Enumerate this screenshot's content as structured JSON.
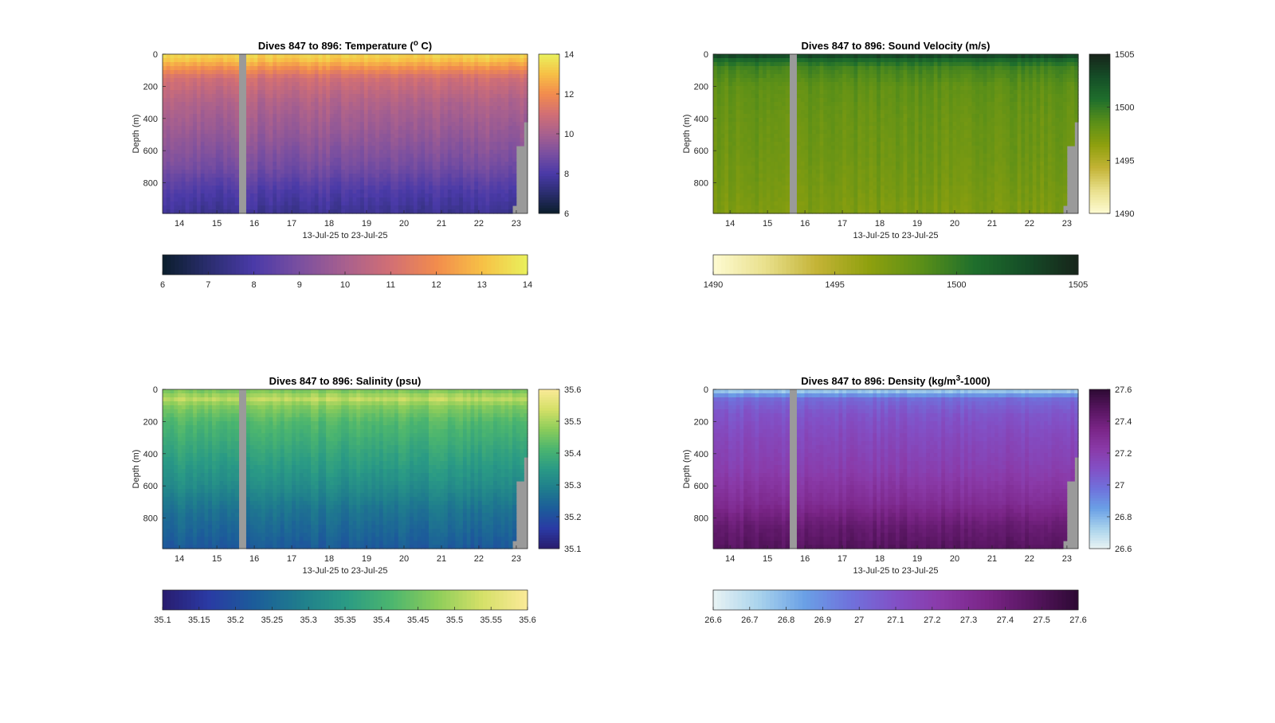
{
  "chart_data": [
    {
      "type": "heatmap",
      "title": "Dives 847 to 896: Temperature (",
      "title_sup": "o",
      "title_tail": " C)",
      "xlabel": "13-Jul-25 to 23-Jul-25",
      "ylabel": "Depth (m)",
      "x_ticks": [
        "14",
        "15",
        "16",
        "17",
        "18",
        "19",
        "20",
        "21",
        "22",
        "23"
      ],
      "x_tick_values": [
        14,
        15,
        16,
        17,
        18,
        19,
        20,
        21,
        22,
        23
      ],
      "xlim": [
        13.55,
        23.3
      ],
      "y_ticks": [
        "0",
        "200",
        "400",
        "600",
        "800"
      ],
      "y_tick_values": [
        0,
        200,
        400,
        600,
        800
      ],
      "ylim": [
        0,
        990
      ],
      "colorbar_ticks": [
        "6",
        "8",
        "10",
        "12",
        "14"
      ],
      "colorbar_tick_values": [
        6,
        8,
        10,
        12,
        14
      ],
      "hbar_ticks": [
        "6",
        "7",
        "8",
        "9",
        "10",
        "11",
        "12",
        "13",
        "14"
      ],
      "hbar_tick_values": [
        6,
        7,
        8,
        9,
        10,
        11,
        12,
        13,
        14
      ],
      "clim": [
        6,
        14
      ],
      "colormap": [
        "#0b1e2c",
        "#2a2d6e",
        "#4a3aa8",
        "#7a4fa0",
        "#a8608e",
        "#d26f74",
        "#f28c4d",
        "#f7c046",
        "#e9f15c"
      ],
      "profile_depths": [
        0,
        30,
        80,
        150,
        300,
        500,
        700,
        850,
        990
      ],
      "profile_values": [
        13.4,
        13.2,
        12.2,
        11.0,
        10.2,
        9.6,
        8.9,
        8.1,
        7.6
      ],
      "missing_gap_x": [
        15.62,
        15.82
      ],
      "missing_bottom_right": "gray"
    },
    {
      "type": "heatmap",
      "title": "Dives 847 to 896: Sound Velocity (m/s)",
      "xlabel": "13-Jul-25 to 23-Jul-25",
      "ylabel": "Depth (m)",
      "x_ticks": [
        "14",
        "15",
        "16",
        "17",
        "18",
        "19",
        "20",
        "21",
        "22",
        "23"
      ],
      "x_tick_values": [
        14,
        15,
        16,
        17,
        18,
        19,
        20,
        21,
        22,
        23
      ],
      "xlim": [
        13.55,
        23.3
      ],
      "y_ticks": [
        "0",
        "200",
        "400",
        "600",
        "800"
      ],
      "y_tick_values": [
        0,
        200,
        400,
        600,
        800
      ],
      "ylim": [
        0,
        990
      ],
      "colorbar_ticks": [
        "1490",
        "1495",
        "1500",
        "1505"
      ],
      "colorbar_tick_values": [
        1490,
        1495,
        1500,
        1505
      ],
      "hbar_ticks": [
        "1490",
        "1495",
        "1500",
        "1505"
      ],
      "hbar_tick_values": [
        1490,
        1495,
        1500,
        1505
      ],
      "clim": [
        1490,
        1505
      ],
      "colormap": [
        "#fefbd2",
        "#e9e08c",
        "#c3b335",
        "#8ea00e",
        "#5a8f18",
        "#1f6f2c",
        "#154d27",
        "#17241a"
      ],
      "profile_depths": [
        0,
        30,
        80,
        200,
        400,
        600,
        800,
        990
      ],
      "profile_values": [
        1504.2,
        1501.5,
        1499.5,
        1498.4,
        1498.0,
        1497.8,
        1497.5,
        1497.1
      ],
      "missing_gap_x": [
        15.62,
        15.82
      ],
      "missing_bottom_right": "gray"
    },
    {
      "type": "heatmap",
      "title": "Dives 847 to 896: Salinity (psu)",
      "xlabel": "13-Jul-25 to 23-Jul-25",
      "ylabel": "Depth (m)",
      "x_ticks": [
        "14",
        "15",
        "16",
        "17",
        "18",
        "19",
        "20",
        "21",
        "22",
        "23"
      ],
      "x_tick_values": [
        14,
        15,
        16,
        17,
        18,
        19,
        20,
        21,
        22,
        23
      ],
      "xlim": [
        13.55,
        23.3
      ],
      "y_ticks": [
        "0",
        "200",
        "400",
        "600",
        "800"
      ],
      "y_tick_values": [
        0,
        200,
        400,
        600,
        800
      ],
      "ylim": [
        0,
        990
      ],
      "colorbar_ticks": [
        "35.6",
        "35.5",
        "35.4",
        "35.3",
        "35.2",
        "35.1"
      ],
      "colorbar_tick_values": [
        35.6,
        35.5,
        35.4,
        35.3,
        35.2,
        35.1
      ],
      "hbar_ticks": [
        "35.1",
        "35.15",
        "35.2",
        "35.25",
        "35.3",
        "35.35",
        "35.4",
        "35.45",
        "35.5",
        "35.55",
        "35.6"
      ],
      "hbar_tick_values": [
        35.1,
        35.15,
        35.2,
        35.25,
        35.3,
        35.35,
        35.4,
        35.45,
        35.5,
        35.55,
        35.6
      ],
      "clim": [
        35.1,
        35.6
      ],
      "colormap": [
        "#291c6e",
        "#2a3aa4",
        "#1c5c9a",
        "#1f7d8d",
        "#2a9a85",
        "#4bb56f",
        "#8ccd5a",
        "#d5e068",
        "#fbea98"
      ],
      "profile_depths": [
        0,
        60,
        100,
        200,
        400,
        600,
        750,
        900,
        990
      ],
      "profile_values": [
        35.45,
        35.52,
        35.47,
        35.42,
        35.37,
        35.32,
        35.27,
        35.24,
        35.22
      ],
      "missing_gap_x": [
        15.62,
        15.82
      ],
      "missing_bottom_right": "gray"
    },
    {
      "type": "heatmap",
      "title": "Dives 847 to 896: Density (kg/m",
      "title_sup": "3",
      "title_tail": "-1000)",
      "xlabel": "13-Jul-25 to 23-Jul-25",
      "ylabel": "Depth (m)",
      "x_ticks": [
        "14",
        "15",
        "16",
        "17",
        "18",
        "19",
        "20",
        "21",
        "22",
        "23"
      ],
      "x_tick_values": [
        14,
        15,
        16,
        17,
        18,
        19,
        20,
        21,
        22,
        23
      ],
      "xlim": [
        13.55,
        23.3
      ],
      "y_ticks": [
        "0",
        "200",
        "400",
        "600",
        "800"
      ],
      "y_tick_values": [
        0,
        200,
        400,
        600,
        800
      ],
      "ylim": [
        0,
        990
      ],
      "colorbar_ticks": [
        "27.6",
        "27.4",
        "27.2",
        "27",
        "26.8",
        "26.6"
      ],
      "colorbar_tick_values": [
        27.6,
        27.4,
        27.2,
        27.0,
        26.8,
        26.6
      ],
      "hbar_ticks": [
        "26.6",
        "26.7",
        "26.8",
        "26.9",
        "27",
        "27.1",
        "27.2",
        "27.3",
        "27.4",
        "27.5",
        "27.6"
      ],
      "hbar_tick_values": [
        26.6,
        26.7,
        26.8,
        26.9,
        27.0,
        27.1,
        27.2,
        27.3,
        27.4,
        27.5,
        27.6
      ],
      "clim": [
        26.6,
        27.6
      ],
      "colormap": [
        "#e9f3f4",
        "#a9d3ec",
        "#6aa0e6",
        "#6f72dc",
        "#8250c6",
        "#8a3aa8",
        "#7a2587",
        "#571560",
        "#2d0a33"
      ],
      "profile_depths": [
        0,
        30,
        60,
        150,
        300,
        500,
        700,
        850,
        990
      ],
      "profile_values": [
        26.7,
        26.85,
        27.0,
        27.08,
        27.14,
        27.2,
        27.3,
        27.42,
        27.48
      ],
      "missing_gap_x": [
        15.62,
        15.82
      ],
      "missing_bottom_right": "gray"
    }
  ]
}
